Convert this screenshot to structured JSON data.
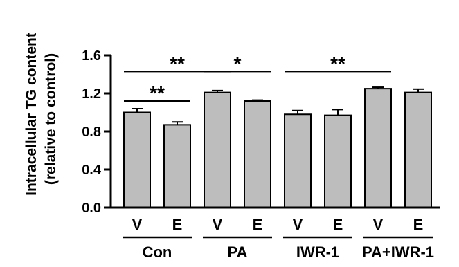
{
  "chart_data": {
    "type": "bar",
    "ylabel_lines": [
      "Intracellular TG content",
      "(relative to control)"
    ],
    "ylim": [
      0,
      1.6
    ],
    "yticks": [
      "0.0",
      "0.4",
      "0.8",
      "1.2",
      "1.6"
    ],
    "bar_color": "#bdbdbd",
    "categories": [
      "V",
      "E",
      "V",
      "E",
      "V",
      "E",
      "V",
      "E"
    ],
    "groups": [
      {
        "label": "Con",
        "bars": [
          0,
          1
        ]
      },
      {
        "label": "PA",
        "bars": [
          2,
          3
        ]
      },
      {
        "label": "IWR-1",
        "bars": [
          4,
          5
        ]
      },
      {
        "label": "PA+IWR-1",
        "bars": [
          6,
          7
        ]
      }
    ],
    "values": [
      1.0,
      0.87,
      1.21,
      1.12,
      0.98,
      0.97,
      1.25,
      1.21
    ],
    "errors": [
      0.04,
      0.03,
      0.02,
      0.01,
      0.04,
      0.06,
      0.015,
      0.035
    ],
    "significance": [
      {
        "from": 0,
        "to": 1,
        "y": 1.12,
        "label": "**"
      },
      {
        "from": 0,
        "to": 2,
        "y": 1.43,
        "label": "**"
      },
      {
        "from": 2,
        "to": 3,
        "y": 1.43,
        "label": "*"
      },
      {
        "from": 4,
        "to": 6,
        "y": 1.43,
        "label": "**"
      }
    ]
  }
}
